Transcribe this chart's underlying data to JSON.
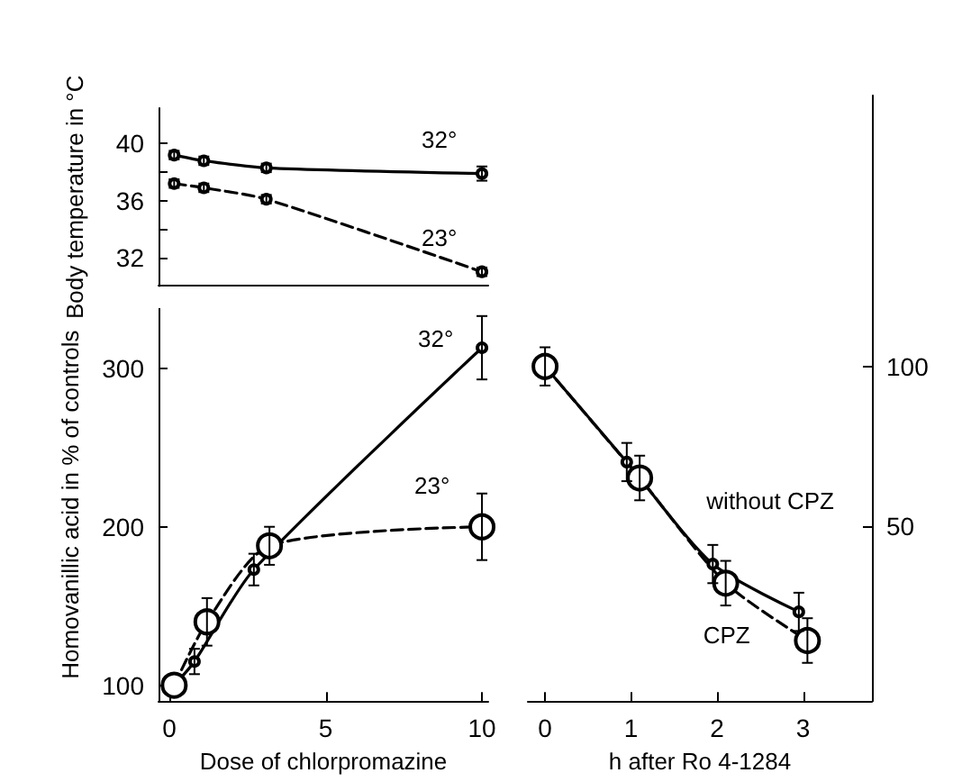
{
  "chart_data": [
    {
      "type": "line",
      "ylabel": "Body temperature in °C",
      "xlim": [
        -0.35,
        10.2
      ],
      "xticks": [
        0,
        5,
        10
      ],
      "ylim": [
        30,
        42.5
      ],
      "yticks": [
        32,
        {
          "value": 34,
          "label": null
        },
        36,
        {
          "value": 38,
          "label": null
        },
        40
      ],
      "tick_labels": "y",
      "grid": false,
      "legend": false,
      "marker": "circle",
      "series": [
        {
          "name": "32°",
          "color": "#000000",
          "line_style": "solid",
          "x": [
            0.15,
            1.1,
            3.1,
            10
          ],
          "values": [
            39.2,
            38.8,
            38.3,
            37.9
          ],
          "errors": [
            0.3,
            0.3,
            0.3,
            0.5
          ]
        },
        {
          "name": "23°",
          "color": "#000000",
          "line_style": "dashed",
          "x": [
            0.15,
            1.1,
            3.1,
            10
          ],
          "values": [
            37.2,
            36.9,
            36.1,
            31.0
          ],
          "errors": [
            0.3,
            0.3,
            0.3,
            0.3
          ]
        }
      ]
    },
    {
      "type": "line",
      "xlabel": "Dose of chlorpromazine",
      "ylabel": "Homovanillic acid in % of controls",
      "xlim": [
        -0.35,
        10.2
      ],
      "xticks": [
        0,
        5,
        10
      ],
      "ylim": [
        90,
        338
      ],
      "yticks": [
        100,
        200,
        300
      ],
      "grid": false,
      "legend": false,
      "marker": "circle",
      "series": [
        {
          "name": "32°",
          "color": "#000000",
          "line_style": "solid",
          "x": [
            0.15,
            0.8,
            2.7,
            10
          ],
          "values": [
            100,
            115,
            173,
            313
          ],
          "errors": [
            null,
            8,
            10,
            20
          ]
        },
        {
          "name": "23°",
          "color": "#000000",
          "line_style": "dashed",
          "x": [
            0.15,
            1.2,
            3.2,
            10
          ],
          "values": [
            100,
            140,
            188,
            200
          ],
          "errors": [
            null,
            15,
            12,
            21
          ]
        }
      ]
    },
    {
      "type": "line",
      "xlabel": "h after Ro 4-1284",
      "xlim": [
        -0.2,
        3.8
      ],
      "xticks": [
        0,
        1,
        2,
        3
      ],
      "ylim": [
        -5,
        185
      ],
      "yticks": [
        50,
        100
      ],
      "grid": false,
      "legend": false,
      "marker": "circle",
      "series": [
        {
          "name": "without CPZ",
          "color": "#000000",
          "line_style": "solid",
          "x": [
            0,
            0.95,
            1.95,
            2.95
          ],
          "values": [
            100,
            70,
            38,
            23
          ],
          "errors": [
            6,
            6,
            6,
            6
          ]
        },
        {
          "name": "CPZ",
          "color": "#000000",
          "line_style": "dashed",
          "x": [
            0,
            1.1,
            2.1,
            3.05
          ],
          "values": [
            100,
            65,
            32,
            14
          ],
          "errors": [
            null,
            7,
            7,
            7
          ]
        }
      ]
    }
  ]
}
